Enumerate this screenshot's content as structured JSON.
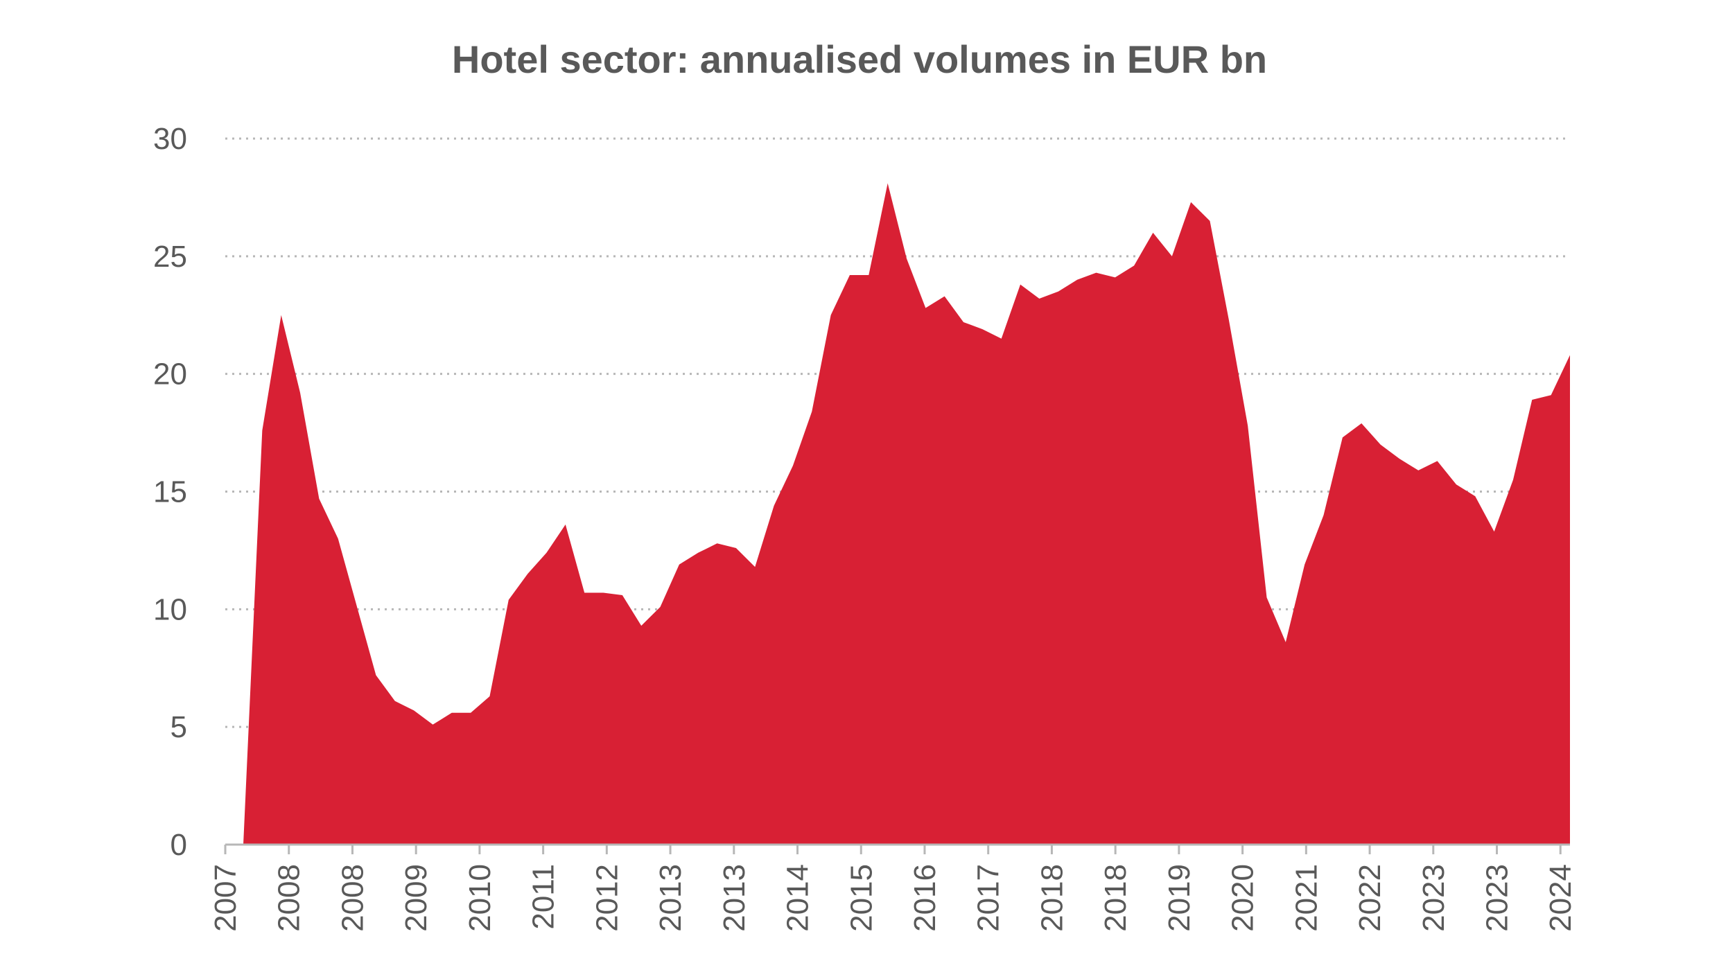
{
  "chart_data": {
    "type": "area",
    "title": "Hotel sector: annualised volumes in EUR bn",
    "xlabel": "",
    "ylabel": "",
    "ylim": [
      0,
      30
    ],
    "yticks": [
      "0",
      "5",
      "10",
      "15",
      "20",
      "25",
      "30"
    ],
    "ytick_values": [
      0,
      5,
      10,
      15,
      20,
      25,
      30
    ],
    "grid": true,
    "legend": "none",
    "series_color": "#d82034",
    "xtick_labels": [
      "2007",
      "2008",
      "2008",
      "2009",
      "2010",
      "2011",
      "2012",
      "2013",
      "2013",
      "2014",
      "2015",
      "2016",
      "2017",
      "2018",
      "2018",
      "2019",
      "2020",
      "2021",
      "2022",
      "2023",
      "2023",
      "2024"
    ],
    "series": [
      {
        "name": "Annualised volume (EUR bn)",
        "values": [
          0,
          17.6,
          22.5,
          19.2,
          14.7,
          13.0,
          10.1,
          7.2,
          6.1,
          5.7,
          5.1,
          5.6,
          5.6,
          6.3,
          10.4,
          11.5,
          12.4,
          13.6,
          10.7,
          10.7,
          10.6,
          9.3,
          10.1,
          11.9,
          12.4,
          12.8,
          12.6,
          11.8,
          14.4,
          16.1,
          18.4,
          22.5,
          24.2,
          24.2,
          28.1,
          24.9,
          22.8,
          23.3,
          22.2,
          21.9,
          21.5,
          23.8,
          23.2,
          23.5,
          24.0,
          24.3,
          24.1,
          24.6,
          26.0,
          25.0,
          27.3,
          26.5,
          22.3,
          17.8,
          10.5,
          8.6,
          11.9,
          14.0,
          17.3,
          17.9,
          17.0,
          16.4,
          15.9,
          16.3,
          15.3,
          14.8,
          13.3,
          15.5,
          18.9,
          19.1,
          20.8
        ]
      }
    ]
  }
}
